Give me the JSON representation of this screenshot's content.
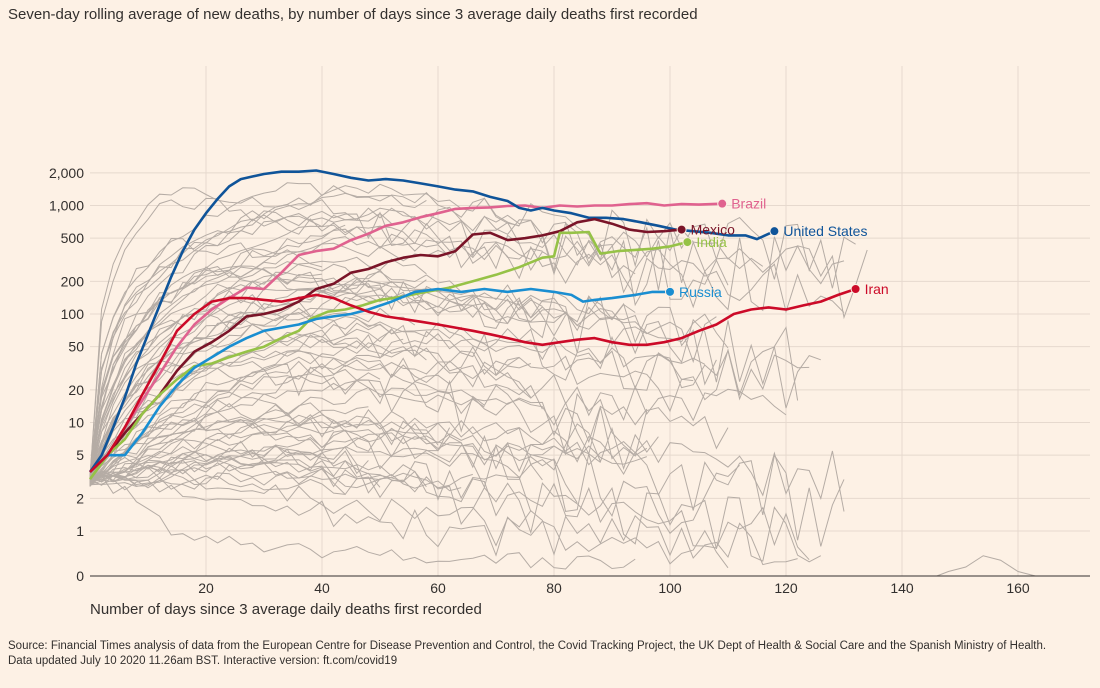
{
  "subtitle": "Seven-day rolling average of new deaths, by number of days since 3 average daily deaths first recorded",
  "source_line1": "Source: Financial Times analysis of data from the European Centre for Disease Prevention and Control, the Covid Tracking Project, the UK Dept of Health & Social Care and the Spanish Ministry of Health.",
  "source_line2": "Data updated July 10 2020 11.26am BST. Interactive version: ft.com/covid19",
  "colors": {
    "background": "#fdf1e5",
    "grid": "#e6d9ce",
    "gray_lines": "#b5aca5",
    "axis": "#33302e"
  },
  "chart_data": {
    "type": "line",
    "xlabel": "Number of days since 3 average daily deaths first recorded",
    "ylabel": "",
    "yscale": "log (symlog, 0 shown at base)",
    "xlim": [
      0,
      175
    ],
    "x_ticks": [
      20,
      40,
      60,
      80,
      100,
      120,
      140,
      160
    ],
    "x_tick_labels": [
      "20",
      "40",
      "60",
      "80",
      "100",
      "120",
      "140",
      "160"
    ],
    "y_ticks": [
      0,
      1,
      2,
      5,
      10,
      20,
      50,
      100,
      200,
      500,
      1000,
      2000
    ],
    "y_tick_labels": [
      "0",
      "1",
      "2",
      "5",
      "10",
      "20",
      "50",
      "100",
      "200",
      "500",
      "1,000",
      "2,000"
    ],
    "grid": true,
    "legend": "inline labels at end of highlighted series",
    "series": [
      {
        "name": "Brazil",
        "color": "#e0628f",
        "label_end": true,
        "points": [
          [
            0,
            3.5
          ],
          [
            3,
            5
          ],
          [
            6,
            9
          ],
          [
            9,
            16
          ],
          [
            12,
            28
          ],
          [
            15,
            50
          ],
          [
            18,
            80
          ],
          [
            21,
            110
          ],
          [
            24,
            140
          ],
          [
            27,
            175
          ],
          [
            30,
            170
          ],
          [
            33,
            240
          ],
          [
            36,
            350
          ],
          [
            39,
            380
          ],
          [
            42,
            400
          ],
          [
            45,
            480
          ],
          [
            48,
            550
          ],
          [
            51,
            650
          ],
          [
            54,
            700
          ],
          [
            57,
            780
          ],
          [
            60,
            850
          ],
          [
            63,
            930
          ],
          [
            66,
            950
          ],
          [
            69,
            960
          ],
          [
            72,
            990
          ],
          [
            75,
            1000
          ],
          [
            78,
            950
          ],
          [
            81,
            1000
          ],
          [
            84,
            980
          ],
          [
            87,
            1000
          ],
          [
            90,
            1000
          ],
          [
            93,
            1030
          ],
          [
            96,
            1050
          ],
          [
            99,
            1000
          ],
          [
            102,
            1030
          ],
          [
            105,
            1020
          ],
          [
            109,
            1040
          ]
        ]
      },
      {
        "name": "United States",
        "color": "#0f5499",
        "label_end": true,
        "points": [
          [
            0,
            3.5
          ],
          [
            2,
            5
          ],
          [
            4,
            9
          ],
          [
            6,
            17
          ],
          [
            8,
            35
          ],
          [
            10,
            65
          ],
          [
            12,
            120
          ],
          [
            14,
            220
          ],
          [
            16,
            380
          ],
          [
            18,
            600
          ],
          [
            20,
            850
          ],
          [
            22,
            1150
          ],
          [
            24,
            1500
          ],
          [
            26,
            1750
          ],
          [
            28,
            1850
          ],
          [
            30,
            1950
          ],
          [
            33,
            2050
          ],
          [
            36,
            2050
          ],
          [
            39,
            2100
          ],
          [
            42,
            1950
          ],
          [
            45,
            1800
          ],
          [
            48,
            1700
          ],
          [
            51,
            1750
          ],
          [
            54,
            1700
          ],
          [
            57,
            1600
          ],
          [
            60,
            1500
          ],
          [
            63,
            1400
          ],
          [
            66,
            1350
          ],
          [
            69,
            1200
          ],
          [
            72,
            1100
          ],
          [
            74,
            950
          ],
          [
            76,
            900
          ],
          [
            78,
            950
          ],
          [
            80,
            900
          ],
          [
            83,
            850
          ],
          [
            86,
            770
          ],
          [
            89,
            770
          ],
          [
            92,
            750
          ],
          [
            95,
            700
          ],
          [
            98,
            650
          ],
          [
            101,
            600
          ],
          [
            104,
            580
          ],
          [
            107,
            560
          ],
          [
            110,
            530
          ],
          [
            113,
            530
          ],
          [
            115,
            490
          ],
          [
            118,
            580
          ]
        ]
      },
      {
        "name": "Mexico",
        "color": "#7a1428",
        "label_end": true,
        "points": [
          [
            0,
            3.5
          ],
          [
            3,
            5
          ],
          [
            6,
            8
          ],
          [
            9,
            12
          ],
          [
            12,
            18
          ],
          [
            15,
            30
          ],
          [
            18,
            45
          ],
          [
            21,
            55
          ],
          [
            24,
            70
          ],
          [
            27,
            95
          ],
          [
            30,
            100
          ],
          [
            33,
            110
          ],
          [
            36,
            130
          ],
          [
            39,
            170
          ],
          [
            42,
            190
          ],
          [
            45,
            240
          ],
          [
            48,
            260
          ],
          [
            51,
            300
          ],
          [
            54,
            330
          ],
          [
            57,
            350
          ],
          [
            60,
            340
          ],
          [
            63,
            380
          ],
          [
            66,
            540
          ],
          [
            69,
            560
          ],
          [
            72,
            480
          ],
          [
            75,
            500
          ],
          [
            78,
            530
          ],
          [
            81,
            580
          ],
          [
            84,
            700
          ],
          [
            87,
            750
          ],
          [
            90,
            680
          ],
          [
            93,
            600
          ],
          [
            96,
            570
          ],
          [
            99,
            580
          ],
          [
            102,
            600
          ]
        ]
      },
      {
        "name": "India",
        "color": "#96c247",
        "label_end": true,
        "points": [
          [
            0,
            3
          ],
          [
            3,
            5
          ],
          [
            6,
            7
          ],
          [
            9,
            12
          ],
          [
            12,
            18
          ],
          [
            15,
            25
          ],
          [
            18,
            33
          ],
          [
            21,
            35
          ],
          [
            24,
            40
          ],
          [
            27,
            45
          ],
          [
            30,
            50
          ],
          [
            33,
            60
          ],
          [
            36,
            70
          ],
          [
            38,
            90
          ],
          [
            41,
            105
          ],
          [
            44,
            110
          ],
          [
            47,
            120
          ],
          [
            50,
            135
          ],
          [
            54,
            145
          ],
          [
            58,
            160
          ],
          [
            62,
            175
          ],
          [
            66,
            200
          ],
          [
            70,
            230
          ],
          [
            74,
            270
          ],
          [
            78,
            330
          ],
          [
            80,
            340
          ],
          [
            81,
            560
          ],
          [
            83,
            560
          ],
          [
            86,
            570
          ],
          [
            88,
            360
          ],
          [
            91,
            380
          ],
          [
            94,
            390
          ],
          [
            97,
            400
          ],
          [
            100,
            420
          ],
          [
            103,
            460
          ]
        ]
      },
      {
        "name": "Russia",
        "color": "#1a8ed1",
        "label_end": true,
        "points": [
          [
            0,
            3.5
          ],
          [
            3,
            5
          ],
          [
            6,
            5
          ],
          [
            9,
            8
          ],
          [
            12,
            14
          ],
          [
            15,
            22
          ],
          [
            18,
            32
          ],
          [
            21,
            40
          ],
          [
            24,
            50
          ],
          [
            27,
            60
          ],
          [
            30,
            70
          ],
          [
            33,
            75
          ],
          [
            36,
            80
          ],
          [
            39,
            90
          ],
          [
            42,
            95
          ],
          [
            45,
            100
          ],
          [
            48,
            110
          ],
          [
            52,
            130
          ],
          [
            56,
            160
          ],
          [
            60,
            170
          ],
          [
            64,
            160
          ],
          [
            68,
            170
          ],
          [
            72,
            160
          ],
          [
            76,
            170
          ],
          [
            80,
            160
          ],
          [
            83,
            150
          ],
          [
            85,
            130
          ],
          [
            87,
            135
          ],
          [
            90,
            140
          ],
          [
            94,
            150
          ],
          [
            97,
            160
          ],
          [
            100,
            160
          ]
        ]
      },
      {
        "name": "Iran",
        "color": "#cc0a28",
        "label_end": true,
        "points": [
          [
            0,
            3.5
          ],
          [
            3,
            5
          ],
          [
            6,
            9
          ],
          [
            9,
            18
          ],
          [
            12,
            35
          ],
          [
            15,
            70
          ],
          [
            18,
            100
          ],
          [
            21,
            130
          ],
          [
            24,
            140
          ],
          [
            27,
            140
          ],
          [
            30,
            135
          ],
          [
            33,
            130
          ],
          [
            36,
            140
          ],
          [
            39,
            150
          ],
          [
            42,
            140
          ],
          [
            45,
            120
          ],
          [
            48,
            105
          ],
          [
            51,
            95
          ],
          [
            54,
            90
          ],
          [
            57,
            85
          ],
          [
            60,
            80
          ],
          [
            63,
            75
          ],
          [
            66,
            70
          ],
          [
            69,
            65
          ],
          [
            72,
            60
          ],
          [
            75,
            55
          ],
          [
            78,
            52
          ],
          [
            81,
            55
          ],
          [
            84,
            58
          ],
          [
            87,
            60
          ],
          [
            90,
            55
          ],
          [
            93,
            52
          ],
          [
            96,
            52
          ],
          [
            99,
            55
          ],
          [
            102,
            60
          ],
          [
            105,
            70
          ],
          [
            108,
            80
          ],
          [
            111,
            100
          ],
          [
            114,
            110
          ],
          [
            117,
            115
          ],
          [
            120,
            110
          ],
          [
            123,
            120
          ],
          [
            126,
            130
          ],
          [
            129,
            150
          ],
          [
            132,
            170
          ]
        ]
      }
    ]
  }
}
